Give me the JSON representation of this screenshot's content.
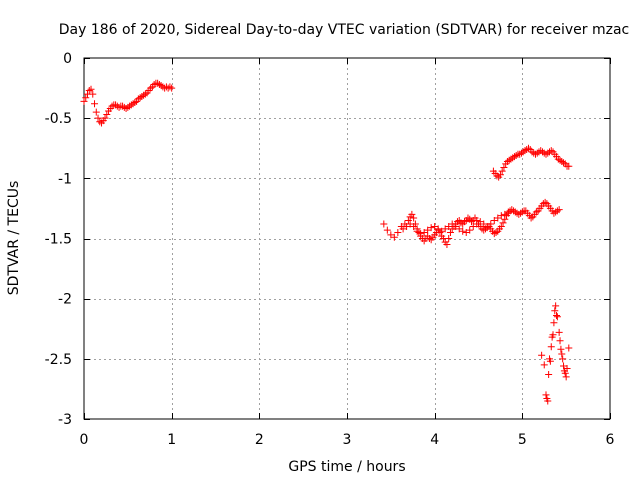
{
  "chart_data": {
    "type": "scatter",
    "title": "Day 186 of 2020, Sidereal Day-to-day VTEC variation (SDTVAR) for receiver mzac",
    "xlabel": "GPS time / hours",
    "ylabel": "SDTVAR / TECUs",
    "xlim": [
      0,
      6
    ],
    "ylim": [
      -3,
      0
    ],
    "xticks": [
      "0",
      "1",
      "2",
      "3",
      "4",
      "5",
      "6"
    ],
    "yticks": [
      "0",
      "-0.5",
      "-1",
      "-1.5",
      "-2",
      "-2.5",
      "-3"
    ],
    "grid": true,
    "marker": "plus",
    "color": "#ff0000",
    "series": [
      {
        "name": "segment-1",
        "points": [
          [
            0.0,
            -0.36
          ],
          [
            0.02,
            -0.33
          ],
          [
            0.04,
            -0.3
          ],
          [
            0.06,
            -0.27
          ],
          [
            0.08,
            -0.26
          ],
          [
            0.1,
            -0.3
          ],
          [
            0.12,
            -0.38
          ],
          [
            0.14,
            -0.45
          ],
          [
            0.16,
            -0.5
          ],
          [
            0.18,
            -0.53
          ],
          [
            0.2,
            -0.54
          ],
          [
            0.22,
            -0.52
          ],
          [
            0.24,
            -0.5
          ],
          [
            0.26,
            -0.47
          ],
          [
            0.28,
            -0.44
          ],
          [
            0.3,
            -0.42
          ],
          [
            0.32,
            -0.4
          ],
          [
            0.34,
            -0.39
          ],
          [
            0.36,
            -0.39
          ],
          [
            0.38,
            -0.4
          ],
          [
            0.4,
            -0.41
          ],
          [
            0.42,
            -0.4
          ],
          [
            0.44,
            -0.4
          ],
          [
            0.46,
            -0.41
          ],
          [
            0.48,
            -0.42
          ],
          [
            0.5,
            -0.41
          ],
          [
            0.52,
            -0.4
          ],
          [
            0.54,
            -0.39
          ],
          [
            0.56,
            -0.38
          ],
          [
            0.58,
            -0.37
          ],
          [
            0.6,
            -0.36
          ],
          [
            0.62,
            -0.34
          ],
          [
            0.64,
            -0.33
          ],
          [
            0.66,
            -0.32
          ],
          [
            0.68,
            -0.31
          ],
          [
            0.7,
            -0.3
          ],
          [
            0.72,
            -0.29
          ],
          [
            0.74,
            -0.27
          ],
          [
            0.76,
            -0.25
          ],
          [
            0.78,
            -0.24
          ],
          [
            0.8,
            -0.22
          ],
          [
            0.82,
            -0.21
          ],
          [
            0.84,
            -0.21
          ],
          [
            0.86,
            -0.22
          ],
          [
            0.88,
            -0.23
          ],
          [
            0.9,
            -0.24
          ],
          [
            0.92,
            -0.25
          ],
          [
            0.94,
            -0.24
          ],
          [
            0.96,
            -0.25
          ],
          [
            0.98,
            -0.24
          ],
          [
            1.0,
            -0.25
          ]
        ]
      },
      {
        "name": "segment-2",
        "points": [
          [
            3.42,
            -1.38
          ],
          [
            3.46,
            -1.43
          ],
          [
            3.5,
            -1.47
          ],
          [
            3.54,
            -1.49
          ],
          [
            3.58,
            -1.45
          ],
          [
            3.62,
            -1.4
          ],
          [
            3.66,
            -1.38
          ],
          [
            3.7,
            -1.35
          ],
          [
            3.72,
            -1.32
          ],
          [
            3.74,
            -1.3
          ],
          [
            3.76,
            -1.33
          ],
          [
            3.78,
            -1.38
          ],
          [
            3.8,
            -1.42
          ],
          [
            3.82,
            -1.45
          ],
          [
            3.84,
            -1.48
          ],
          [
            3.86,
            -1.5
          ],
          [
            3.88,
            -1.52
          ],
          [
            3.9,
            -1.5
          ],
          [
            3.92,
            -1.48
          ],
          [
            3.94,
            -1.5
          ],
          [
            3.96,
            -1.51
          ],
          [
            3.98,
            -1.49
          ],
          [
            4.0,
            -1.47
          ],
          [
            4.02,
            -1.45
          ],
          [
            4.04,
            -1.43
          ],
          [
            4.06,
            -1.45
          ],
          [
            4.08,
            -1.48
          ],
          [
            4.1,
            -1.5
          ],
          [
            4.12,
            -1.53
          ],
          [
            4.14,
            -1.55
          ],
          [
            4.16,
            -1.5
          ],
          [
            4.18,
            -1.45
          ],
          [
            4.2,
            -1.42
          ],
          [
            4.22,
            -1.4
          ],
          [
            4.24,
            -1.38
          ],
          [
            4.26,
            -1.36
          ],
          [
            4.28,
            -1.35
          ],
          [
            4.3,
            -1.37
          ],
          [
            4.32,
            -1.38
          ],
          [
            4.34,
            -1.36
          ],
          [
            4.36,
            -1.35
          ],
          [
            4.38,
            -1.33
          ],
          [
            4.4,
            -1.34
          ],
          [
            4.42,
            -1.36
          ],
          [
            4.44,
            -1.35
          ],
          [
            4.46,
            -1.33
          ],
          [
            4.48,
            -1.35
          ],
          [
            4.5,
            -1.38
          ],
          [
            4.52,
            -1.4
          ],
          [
            4.54,
            -1.42
          ],
          [
            4.56,
            -1.43
          ],
          [
            4.58,
            -1.42
          ],
          [
            4.6,
            -1.41
          ],
          [
            4.62,
            -1.4
          ],
          [
            4.64,
            -1.42
          ],
          [
            4.66,
            -1.44
          ],
          [
            4.68,
            -1.46
          ],
          [
            4.7,
            -1.45
          ],
          [
            4.72,
            -1.44
          ],
          [
            4.74,
            -1.42
          ],
          [
            4.76,
            -1.4
          ],
          [
            4.78,
            -1.37
          ],
          [
            4.8,
            -1.34
          ],
          [
            4.82,
            -1.31
          ],
          [
            4.84,
            -1.29
          ],
          [
            4.86,
            -1.27
          ],
          [
            4.88,
            -1.26
          ],
          [
            4.9,
            -1.27
          ],
          [
            4.92,
            -1.28
          ],
          [
            4.94,
            -1.29
          ],
          [
            4.96,
            -1.3
          ],
          [
            4.98,
            -1.29
          ],
          [
            5.0,
            -1.28
          ],
          [
            5.02,
            -1.27
          ],
          [
            5.04,
            -1.27
          ],
          [
            5.06,
            -1.29
          ],
          [
            5.08,
            -1.31
          ],
          [
            5.1,
            -1.33
          ],
          [
            5.12,
            -1.32
          ],
          [
            5.14,
            -1.3
          ],
          [
            5.16,
            -1.28
          ],
          [
            5.18,
            -1.27
          ],
          [
            5.2,
            -1.25
          ],
          [
            5.22,
            -1.23
          ],
          [
            5.24,
            -1.21
          ],
          [
            5.26,
            -1.2
          ],
          [
            5.28,
            -1.21
          ],
          [
            5.3,
            -1.23
          ],
          [
            5.32,
            -1.25
          ],
          [
            5.34,
            -1.27
          ],
          [
            5.36,
            -1.29
          ],
          [
            5.38,
            -1.28
          ],
          [
            5.4,
            -1.27
          ],
          [
            5.42,
            -1.26
          ]
        ]
      },
      {
        "name": "segment-3",
        "points": [
          [
            3.64,
            -1.42
          ],
          [
            3.68,
            -1.4
          ],
          [
            3.72,
            -1.38
          ],
          [
            3.76,
            -1.4
          ],
          [
            3.8,
            -1.44
          ],
          [
            3.84,
            -1.46
          ],
          [
            3.88,
            -1.45
          ],
          [
            3.92,
            -1.43
          ],
          [
            3.96,
            -1.41
          ],
          [
            4.0,
            -1.4
          ],
          [
            4.04,
            -1.42
          ],
          [
            4.08,
            -1.44
          ],
          [
            4.12,
            -1.42
          ],
          [
            4.16,
            -1.4
          ],
          [
            4.2,
            -1.38
          ],
          [
            4.24,
            -1.4
          ],
          [
            4.28,
            -1.42
          ],
          [
            4.32,
            -1.44
          ],
          [
            4.36,
            -1.45
          ],
          [
            4.4,
            -1.43
          ],
          [
            4.44,
            -1.4
          ],
          [
            4.48,
            -1.38
          ],
          [
            4.52,
            -1.36
          ],
          [
            4.56,
            -1.38
          ],
          [
            4.6,
            -1.4
          ],
          [
            4.64,
            -1.38
          ],
          [
            4.68,
            -1.35
          ],
          [
            4.72,
            -1.33
          ],
          [
            4.76,
            -1.31
          ],
          [
            4.8,
            -1.3
          ],
          [
            4.84,
            -1.28
          ]
        ]
      },
      {
        "name": "segment-4",
        "points": [
          [
            4.67,
            -0.94
          ],
          [
            4.69,
            -0.96
          ],
          [
            4.71,
            -0.98
          ],
          [
            4.73,
            -0.99
          ],
          [
            4.75,
            -0.97
          ],
          [
            4.77,
            -0.94
          ],
          [
            4.79,
            -0.91
          ],
          [
            4.81,
            -0.88
          ],
          [
            4.83,
            -0.86
          ],
          [
            4.85,
            -0.85
          ],
          [
            4.87,
            -0.84
          ],
          [
            4.89,
            -0.83
          ],
          [
            4.91,
            -0.82
          ],
          [
            4.93,
            -0.81
          ],
          [
            4.95,
            -0.8
          ],
          [
            4.97,
            -0.8
          ],
          [
            4.99,
            -0.79
          ],
          [
            5.01,
            -0.78
          ],
          [
            5.03,
            -0.77
          ],
          [
            5.05,
            -0.76
          ],
          [
            5.07,
            -0.75
          ],
          [
            5.09,
            -0.76
          ],
          [
            5.11,
            -0.78
          ],
          [
            5.13,
            -0.79
          ],
          [
            5.15,
            -0.8
          ],
          [
            5.17,
            -0.79
          ],
          [
            5.19,
            -0.78
          ],
          [
            5.21,
            -0.77
          ],
          [
            5.23,
            -0.78
          ],
          [
            5.25,
            -0.79
          ],
          [
            5.27,
            -0.8
          ],
          [
            5.29,
            -0.79
          ],
          [
            5.31,
            -0.78
          ],
          [
            5.33,
            -0.77
          ],
          [
            5.35,
            -0.78
          ],
          [
            5.37,
            -0.8
          ],
          [
            5.39,
            -0.82
          ],
          [
            5.41,
            -0.84
          ],
          [
            5.43,
            -0.85
          ],
          [
            5.45,
            -0.86
          ],
          [
            5.47,
            -0.87
          ],
          [
            5.49,
            -0.88
          ],
          [
            5.51,
            -0.9
          ],
          [
            5.53,
            -0.9
          ]
        ]
      },
      {
        "name": "segment-5",
        "points": [
          [
            5.22,
            -2.47
          ],
          [
            5.25,
            -2.55
          ],
          [
            5.27,
            -2.8
          ],
          [
            5.28,
            -2.83
          ],
          [
            5.29,
            -2.85
          ],
          [
            5.3,
            -2.63
          ],
          [
            5.31,
            -2.5
          ],
          [
            5.32,
            -2.52
          ],
          [
            5.33,
            -2.4
          ],
          [
            5.34,
            -2.32
          ],
          [
            5.35,
            -2.3
          ],
          [
            5.36,
            -2.2
          ],
          [
            5.37,
            -2.1
          ],
          [
            5.38,
            -2.06
          ],
          [
            5.39,
            -2.14
          ],
          [
            5.4,
            -2.15
          ],
          [
            5.42,
            -2.28
          ],
          [
            5.43,
            -2.35
          ],
          [
            5.44,
            -2.42
          ],
          [
            5.45,
            -2.46
          ],
          [
            5.46,
            -2.5
          ],
          [
            5.47,
            -2.56
          ],
          [
            5.48,
            -2.6
          ],
          [
            5.49,
            -2.62
          ],
          [
            5.5,
            -2.65
          ],
          [
            5.51,
            -2.58
          ],
          [
            5.53,
            -2.41
          ]
        ]
      }
    ]
  }
}
